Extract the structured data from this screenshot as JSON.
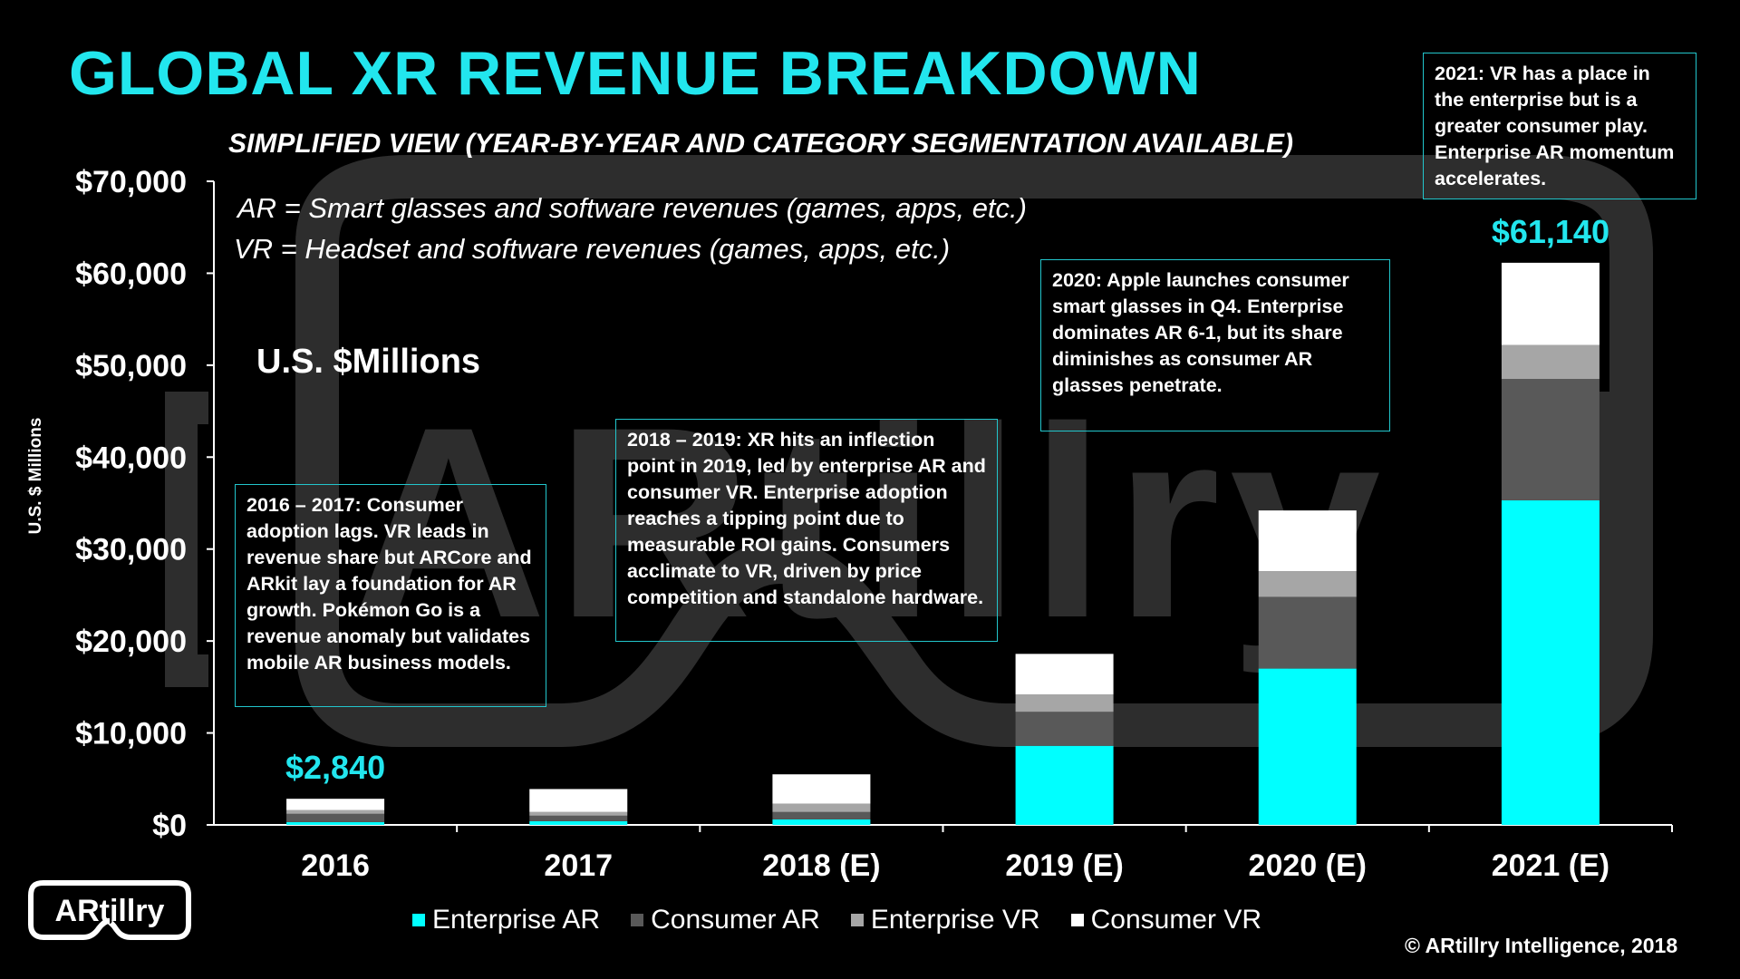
{
  "title": "GLOBAL XR REVENUE BREAKDOWN",
  "subtitle": "SIMPLIFIED VIEW (YEAR-BY-YEAR AND CATEGORY SEGMENTATION AVAILABLE)",
  "definitions": {
    "ar": "AR = Smart glasses and software revenues (games, apps, etc.)",
    "vr": "VR = Headset and software revenues (games, apps, etc.)"
  },
  "units_label": "U.S. $Millions",
  "notes": [
    "2016 – 2017: Consumer adoption lags. VR leads in revenue share but  ARCore and ARkit lay a foundation for AR growth. Pokémon Go is a revenue anomaly but validates mobile AR business models.",
    "2018 – 2019: XR hits an inflection point in 2019, led by enterprise AR and consumer VR.  Enterprise adoption reaches a tipping point due to measurable ROI gains. Consumers acclimate to VR, driven by price competition and standalone hardware.",
    "2020: Apple launches consumer smart glasses in Q4. Enterprise dominates AR 6-1, but its share diminishes as consumer AR glasses penetrate.",
    "2021: VR has a place in the enterprise but is a greater consumer play. Enterprise AR momentum accelerates."
  ],
  "copyright": "© ARtillry Intelligence, 2018",
  "logo_text": "ARtillry",
  "watermark_text": "ARtillry",
  "colors": {
    "enterprise_ar": "#00ffff",
    "consumer_ar": "#595959",
    "enterprise_vr": "#a6a6a6",
    "consumer_vr": "#ffffff",
    "accent": "#22e6ee"
  },
  "chart_data": {
    "type": "bar",
    "stacked": true,
    "categories": [
      "2016",
      "2017",
      "2018 (E)",
      "2019 (E)",
      "2020 (E)",
      "2021 (E)"
    ],
    "series": [
      {
        "name": "Enterprise AR",
        "values": [
          300,
          400,
          600,
          8600,
          17000,
          35300
        ]
      },
      {
        "name": "Consumer AR",
        "values": [
          900,
          600,
          800,
          3700,
          7800,
          13200
        ]
      },
      {
        "name": "Enterprise VR",
        "values": [
          400,
          400,
          900,
          1900,
          2800,
          3700
        ]
      },
      {
        "name": "Consumer VR",
        "values": [
          1240,
          2500,
          3200,
          4400,
          6600,
          8940
        ]
      }
    ],
    "totals_labels": [
      {
        "category": "2016",
        "text": "$2,840"
      },
      {
        "category": "2021 (E)",
        "text": "$61,140"
      }
    ],
    "ylabel": "U.S. $ Millions",
    "ylim": [
      0,
      70000
    ],
    "yticks": [
      "$0",
      "$10,000",
      "$20,000",
      "$30,000",
      "$40,000",
      "$50,000",
      "$60,000",
      "$70,000"
    ],
    "grid": false,
    "legend_position": "bottom"
  }
}
